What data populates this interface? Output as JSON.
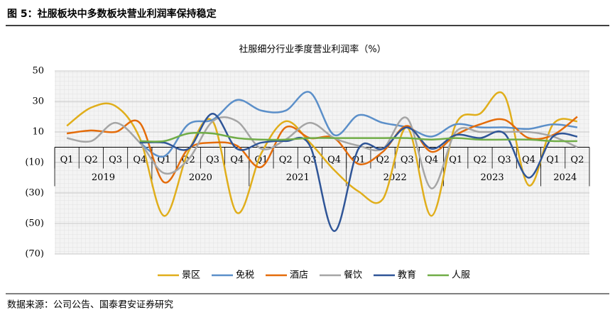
{
  "header": {
    "title": "图 5：社服板块中多数板块营业利润率保持稳定"
  },
  "chart_data": {
    "type": "line",
    "title": "社服细分行业季度营业利润率（%）",
    "categories": [
      "Q1",
      "Q2",
      "Q3",
      "Q4",
      "Q1",
      "Q2",
      "Q3",
      "Q4",
      "Q1",
      "Q2",
      "Q3",
      "Q4",
      "Q1",
      "Q2",
      "Q3",
      "Q4",
      "Q1",
      "Q2",
      "Q3",
      "Q4",
      "Q1",
      "Q2"
    ],
    "year_groups": [
      {
        "name": "2019",
        "count": 4
      },
      {
        "name": "2020",
        "count": 4
      },
      {
        "name": "2021",
        "count": 4
      },
      {
        "name": "2022",
        "count": 4
      },
      {
        "name": "2023",
        "count": 4
      },
      {
        "name": "2024",
        "count": 2
      }
    ],
    "ylim": [
      -70,
      50
    ],
    "yticks": [
      50,
      30,
      10,
      {
        "value": -10,
        "label": "(10)"
      },
      {
        "value": -30,
        "label": "(30)"
      },
      {
        "value": -50,
        "label": "(50)"
      },
      {
        "value": -70,
        "label": "(70)"
      }
    ],
    "grid": true,
    "smooth": true,
    "legend": "bottom",
    "series": [
      {
        "name": "景区",
        "color": "#E0AE1B",
        "values": [
          14,
          26,
          27,
          6,
          -45,
          -3,
          17,
          -43,
          -4,
          17,
          3,
          -15,
          -29,
          -34,
          13,
          -45,
          15,
          22,
          34,
          -25,
          15,
          17
        ]
      },
      {
        "name": "免税",
        "color": "#5B8FC9",
        "values": [
          null,
          null,
          null,
          3,
          -6,
          15,
          18,
          31,
          24,
          24,
          36,
          8,
          21,
          16,
          13,
          7,
          15,
          13,
          13,
          12,
          15,
          13
        ]
      },
      {
        "name": "酒店",
        "color": "#E46C0A",
        "values": [
          9,
          11,
          10,
          16,
          -23,
          -1,
          3,
          1,
          -13,
          13,
          6,
          6,
          -11,
          -3,
          14,
          -3,
          8,
          15,
          18,
          6,
          8,
          20
        ]
      },
      {
        "name": "餐饮",
        "color": "#A5A5A5",
        "values": [
          6,
          4,
          16,
          3,
          -17,
          -8,
          17,
          17,
          -1,
          5,
          16,
          6,
          1,
          -1,
          19,
          -27,
          10,
          10,
          10,
          10,
          7,
          0
        ]
      },
      {
        "name": "教育",
        "color": "#2F5597",
        "values": [
          null,
          null,
          null,
          3,
          3,
          -1,
          22,
          -1,
          3,
          4,
          1,
          -55,
          -1,
          -1,
          13,
          -1,
          8,
          6,
          9,
          -20,
          7,
          7
        ]
      },
      {
        "name": "人服",
        "color": "#70AD47",
        "values": [
          null,
          null,
          null,
          4,
          4,
          9,
          9,
          6,
          5,
          5,
          6,
          6,
          6,
          6,
          6,
          5,
          6,
          5,
          5,
          5,
          4,
          4
        ]
      }
    ]
  },
  "footer": {
    "source": "数据来源：公司公告、国泰君安证券研究"
  }
}
